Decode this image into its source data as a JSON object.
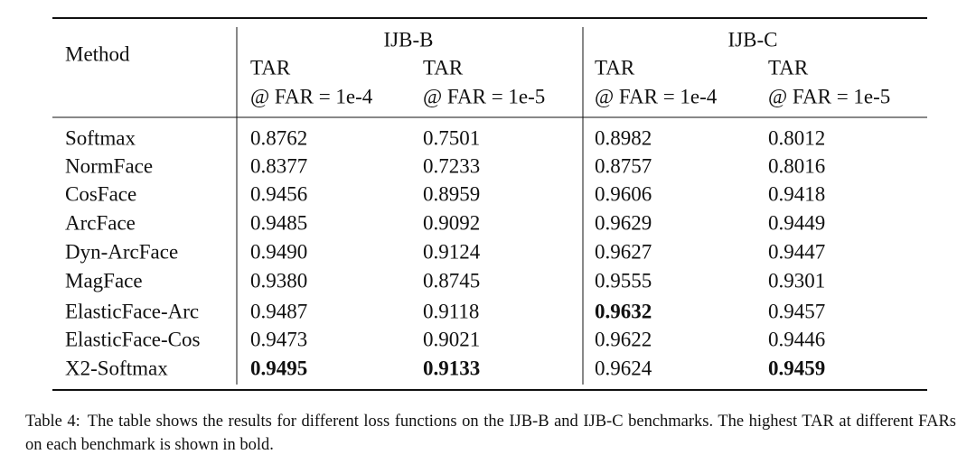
{
  "table": {
    "header": {
      "method": "Method",
      "groups": [
        {
          "name": "IJB-B",
          "columns": [
            [
              "TAR",
              "@ FAR = 1e-4"
            ],
            [
              "TAR",
              "@ FAR = 1e-5"
            ]
          ]
        },
        {
          "name": "IJB-C",
          "columns": [
            [
              "TAR",
              "@ FAR = 1e-4"
            ],
            [
              "TAR",
              "@ FAR = 1e-5"
            ]
          ]
        }
      ]
    },
    "rows": [
      {
        "method": "Softmax",
        "values": [
          "0.8762",
          "0.7501",
          "0.8982",
          "0.8012"
        ],
        "bold": []
      },
      {
        "method": "NormFace",
        "values": [
          "0.8377",
          "0.7233",
          "0.8757",
          "0.8016"
        ],
        "bold": []
      },
      {
        "method": "CosFace",
        "values": [
          "0.9456",
          "0.8959",
          "0.9606",
          "0.9418"
        ],
        "bold": []
      },
      {
        "method": "ArcFace",
        "values": [
          "0.9485",
          "0.9092",
          "0.9629",
          "0.9449"
        ],
        "bold": []
      },
      {
        "method": "Dyn-ArcFace",
        "values": [
          "0.9490",
          "0.9124",
          "0.9627",
          "0.9447"
        ],
        "bold": []
      },
      {
        "method": "MagFace",
        "values": [
          "0.9380",
          "0.8745",
          "0.9555",
          "0.9301"
        ],
        "bold": []
      },
      {
        "method": "ElasticFace-Arc",
        "values": [
          "0.9487",
          "0.9118",
          "0.9632",
          "0.9457"
        ],
        "bold": [
          2
        ]
      },
      {
        "method": "ElasticFace-Cos",
        "values": [
          "0.9473",
          "0.9021",
          "0.9622",
          "0.9446"
        ],
        "bold": []
      },
      {
        "method": "X2-Softmax",
        "values": [
          "0.9495",
          "0.9133",
          "0.9624",
          "0.9459"
        ],
        "bold": [
          0,
          1,
          3
        ]
      }
    ]
  },
  "caption": {
    "label": "Table 4:",
    "text": "The table shows the results for different loss functions on the IJB-B and IJB-C benchmarks. The highest TAR at different FARs on each benchmark is shown in bold."
  }
}
